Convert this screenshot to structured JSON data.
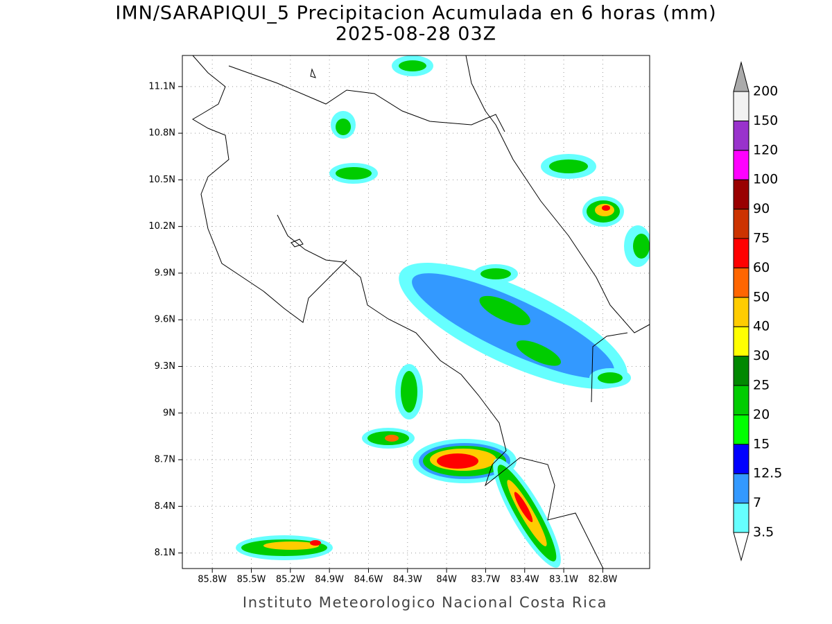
{
  "title": "IMN/SARAPIQUI_5 Precipitacion Acumulada en 6 horas (mm)",
  "subtitle": "2025-08-28 03Z",
  "map": {
    "xlim": [
      -86.03,
      -82.44
    ],
    "ylim": [
      8.0,
      11.3
    ],
    "xticks": [
      {
        "value": -85.8,
        "label": "85.8W"
      },
      {
        "value": -85.5,
        "label": "85.5W"
      },
      {
        "value": -85.2,
        "label": "85.2W"
      },
      {
        "value": -84.9,
        "label": "84.9W"
      },
      {
        "value": -84.6,
        "label": "84.6W"
      },
      {
        "value": -84.3,
        "label": "84.3W"
      },
      {
        "value": -84.0,
        "label": "84W"
      },
      {
        "value": -83.7,
        "label": "83.7W"
      },
      {
        "value": -83.4,
        "label": "83.4W"
      },
      {
        "value": -83.1,
        "label": "83.1W"
      },
      {
        "value": -82.8,
        "label": "82.8W"
      }
    ],
    "yticks": [
      {
        "value": 8.1,
        "label": "8.1N"
      },
      {
        "value": 8.4,
        "label": "8.4N"
      },
      {
        "value": 8.7,
        "label": "8.7N"
      },
      {
        "value": 9.0,
        "label": "9N"
      },
      {
        "value": 9.3,
        "label": "9.3N"
      },
      {
        "value": 9.6,
        "label": "9.6N"
      },
      {
        "value": 9.9,
        "label": "9.9N"
      },
      {
        "value": 10.2,
        "label": "10.2N"
      },
      {
        "value": 10.5,
        "label": "10.5N"
      },
      {
        "value": 10.8,
        "label": "10.8N"
      },
      {
        "value": 11.1,
        "label": "11.1N"
      }
    ],
    "grid": true
  },
  "colorbar": {
    "levels": [
      3.5,
      7,
      12.5,
      15,
      20,
      25,
      30,
      40,
      50,
      60,
      75,
      90,
      100,
      120,
      150,
      200
    ],
    "colors": [
      "#66ffff",
      "#3399ff",
      "#0000ff",
      "#00ff00",
      "#00cc00",
      "#008800",
      "#ffff00",
      "#ffcc00",
      "#ff6600",
      "#ff0000",
      "#cc3300",
      "#990000",
      "#ff00ff",
      "#9933cc",
      "#f2f2f2"
    ],
    "over_color": "#aaaaaa",
    "under_color": "#ffffff"
  },
  "credit": "Instituto Meteorologico Nacional Costa Rica"
}
